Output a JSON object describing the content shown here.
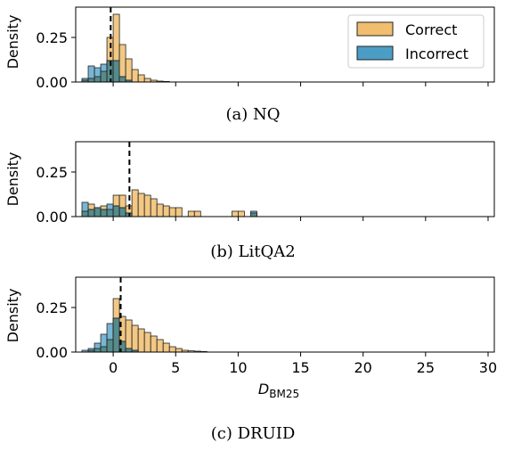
{
  "colors": {
    "correct": "#f0be6e",
    "incorrect": "#4b9dc6",
    "overlap": "#3d7367",
    "edge": "#222222",
    "threshold_line": "#000000"
  },
  "legend": {
    "correct_label": "Correct",
    "incorrect_label": "Incorrect",
    "placement": "top-right (panel a only)"
  },
  "chart_data": [
    {
      "type": "bar",
      "caption": "(a) NQ",
      "ylabel": "Density",
      "xlabel": "",
      "xlim": [
        -3,
        30.5
      ],
      "ylim": [
        0,
        0.42
      ],
      "yticks": [
        0.0,
        0.25
      ],
      "ytick_labels": [
        "0.00",
        "0.25"
      ],
      "xticks": [
        0,
        5,
        10,
        15,
        20,
        25,
        30
      ],
      "xtick_labels": [],
      "bin_width": 0.5,
      "threshold": -0.2,
      "series": [
        {
          "name": "Correct",
          "bins": [
            [
              -2.5,
              0.01
            ],
            [
              -2.0,
              0.02
            ],
            [
              -1.5,
              0.03
            ],
            [
              -1.0,
              0.06
            ],
            [
              -0.5,
              0.25
            ],
            [
              0.0,
              0.38
            ],
            [
              0.5,
              0.21
            ],
            [
              1.0,
              0.13
            ],
            [
              1.5,
              0.07
            ],
            [
              2.0,
              0.04
            ],
            [
              2.5,
              0.02
            ],
            [
              3.0,
              0.01
            ],
            [
              3.5,
              0.005
            ],
            [
              4.0,
              0.003
            ]
          ]
        },
        {
          "name": "Incorrect",
          "bins": [
            [
              -2.5,
              0.02
            ],
            [
              -2.0,
              0.09
            ],
            [
              -1.5,
              0.08
            ],
            [
              -1.0,
              0.1
            ],
            [
              -0.5,
              0.12
            ],
            [
              0.0,
              0.12
            ],
            [
              0.5,
              0.03
            ],
            [
              1.0,
              0.01
            ]
          ]
        }
      ]
    },
    {
      "type": "bar",
      "caption": "(b) LitQA2",
      "ylabel": "Density",
      "xlabel": "",
      "xlim": [
        -3,
        30.5
      ],
      "ylim": [
        0,
        0.42
      ],
      "yticks": [
        0.0,
        0.25
      ],
      "ytick_labels": [
        "0.00",
        "0.25"
      ],
      "xticks": [
        0,
        5,
        10,
        15,
        20,
        25,
        30
      ],
      "xtick_labels": [],
      "bin_width": 0.5,
      "threshold": 1.3,
      "series": [
        {
          "name": "Correct",
          "bins": [
            [
              -2.5,
              0.03
            ],
            [
              -2.0,
              0.07
            ],
            [
              -1.5,
              0.05
            ],
            [
              -1.0,
              0.06
            ],
            [
              -0.5,
              0.04
            ],
            [
              0.0,
              0.12
            ],
            [
              0.5,
              0.12
            ],
            [
              1.0,
              0.06
            ],
            [
              1.5,
              0.15
            ],
            [
              2.0,
              0.13
            ],
            [
              2.5,
              0.12
            ],
            [
              3.0,
              0.1
            ],
            [
              3.5,
              0.07
            ],
            [
              4.0,
              0.06
            ],
            [
              4.5,
              0.05
            ],
            [
              5.0,
              0.05
            ],
            [
              6.0,
              0.03
            ],
            [
              6.5,
              0.03
            ],
            [
              9.5,
              0.03
            ],
            [
              10.0,
              0.03
            ],
            [
              11.0,
              0.02
            ]
          ]
        },
        {
          "name": "Incorrect",
          "bins": [
            [
              -2.5,
              0.08
            ],
            [
              -2.0,
              0.04
            ],
            [
              -1.5,
              0.05
            ],
            [
              -1.0,
              0.04
            ],
            [
              -0.5,
              0.07
            ],
            [
              0.0,
              0.06
            ],
            [
              0.5,
              0.05
            ],
            [
              1.0,
              0.02
            ],
            [
              11.0,
              0.03
            ]
          ]
        }
      ]
    },
    {
      "type": "bar",
      "caption": "(c) DRUID",
      "ylabel": "Density",
      "xlabel": "D_BM25",
      "xlim": [
        -3,
        30.5
      ],
      "ylim": [
        0,
        0.42
      ],
      "yticks": [
        0.0,
        0.25
      ],
      "ytick_labels": [
        "0.00",
        "0.25"
      ],
      "xticks": [
        0,
        5,
        10,
        15,
        20,
        25,
        30
      ],
      "xtick_labels": [
        "0",
        "5",
        "10",
        "15",
        "20",
        "25",
        "30"
      ],
      "bin_width": 0.5,
      "threshold": 0.6,
      "series": [
        {
          "name": "Correct",
          "bins": [
            [
              -2.0,
              0.01
            ],
            [
              -1.5,
              0.02
            ],
            [
              -1.0,
              0.03
            ],
            [
              -0.5,
              0.07
            ],
            [
              0.0,
              0.3
            ],
            [
              0.5,
              0.2
            ],
            [
              1.0,
              0.18
            ],
            [
              1.5,
              0.15
            ],
            [
              2.0,
              0.13
            ],
            [
              2.5,
              0.11
            ],
            [
              3.0,
              0.09
            ],
            [
              3.5,
              0.07
            ],
            [
              4.0,
              0.05
            ],
            [
              4.5,
              0.03
            ],
            [
              5.0,
              0.02
            ],
            [
              5.5,
              0.01
            ],
            [
              6.0,
              0.007
            ],
            [
              6.5,
              0.005
            ],
            [
              7.0,
              0.003
            ]
          ]
        },
        {
          "name": "Incorrect",
          "bins": [
            [
              -2.5,
              0.01
            ],
            [
              -2.0,
              0.02
            ],
            [
              -1.5,
              0.05
            ],
            [
              -1.0,
              0.1
            ],
            [
              -0.5,
              0.16
            ],
            [
              0.0,
              0.19
            ],
            [
              0.5,
              0.06
            ],
            [
              1.0,
              0.02
            ],
            [
              1.5,
              0.01
            ]
          ]
        }
      ]
    }
  ]
}
